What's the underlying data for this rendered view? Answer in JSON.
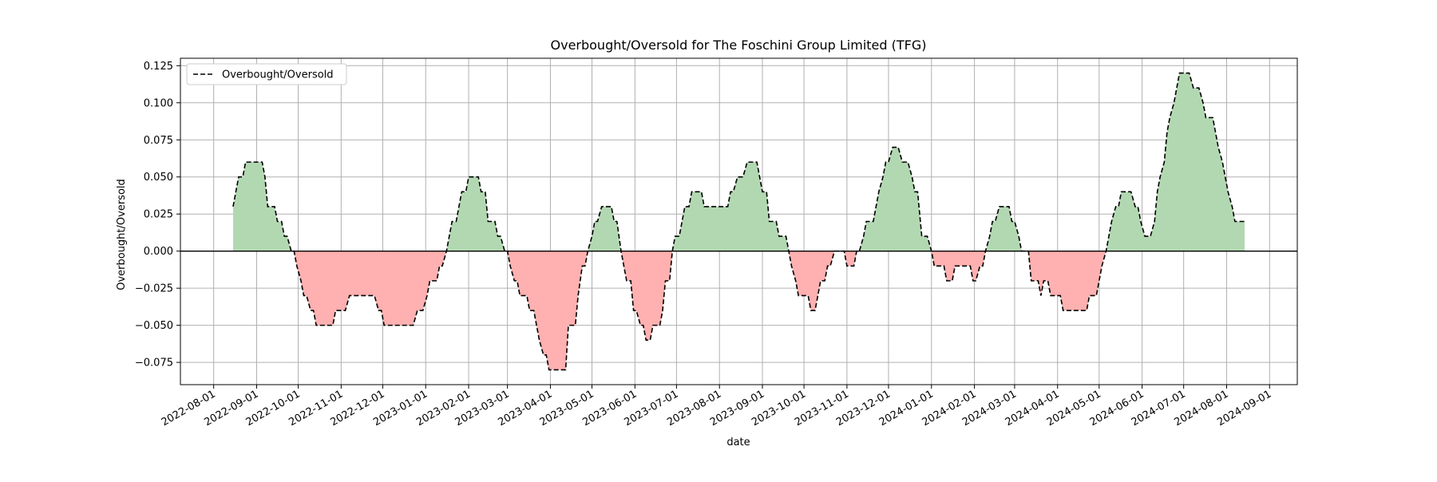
{
  "chart_data": {
    "type": "area",
    "title": "Overbought/Oversold for The Foschini Group Limited (TFG)",
    "xlabel": "date",
    "ylabel": "Overbought/Oversold",
    "legend": {
      "label": "Overbought/Oversold",
      "position": "top-left"
    },
    "xlim": [
      "2022-07-08",
      "2024-09-21"
    ],
    "ylim": [
      -0.09,
      0.13
    ],
    "grid": true,
    "x_ticks": [
      "2022-08-01",
      "2022-09-01",
      "2022-10-01",
      "2022-11-01",
      "2022-12-01",
      "2023-01-01",
      "2023-02-01",
      "2023-03-01",
      "2023-04-01",
      "2023-05-01",
      "2023-06-01",
      "2023-07-01",
      "2023-08-01",
      "2023-09-01",
      "2023-10-01",
      "2023-11-01",
      "2023-12-01",
      "2024-01-01",
      "2024-02-01",
      "2024-03-01",
      "2024-04-01",
      "2024-05-01",
      "2024-06-01",
      "2024-07-01",
      "2024-08-01",
      "2024-09-01"
    ],
    "y_ticks": [
      "0.125",
      "0.100",
      "0.075",
      "0.050",
      "0.025",
      "0.000",
      "−0.025",
      "−0.050",
      "−0.075"
    ],
    "y_tick_values": [
      0.125,
      0.1,
      0.075,
      0.05,
      0.025,
      0.0,
      -0.025,
      -0.05,
      -0.075
    ],
    "colors": {
      "positive_fill": "#b2d8b2",
      "negative_fill": "#ffb0b0",
      "line": "#000000",
      "zero_line": "#000000",
      "grid": "#b0b0b0"
    },
    "series": [
      {
        "name": "Overbought/Oversold",
        "points": [
          [
            "2022-08-15",
            0.03
          ],
          [
            "2022-08-17",
            0.04
          ],
          [
            "2022-08-19",
            0.05
          ],
          [
            "2022-08-22",
            0.05
          ],
          [
            "2022-08-24",
            0.06
          ],
          [
            "2022-09-05",
            0.06
          ],
          [
            "2022-09-07",
            0.05
          ],
          [
            "2022-09-09",
            0.03
          ],
          [
            "2022-09-14",
            0.03
          ],
          [
            "2022-09-16",
            0.02
          ],
          [
            "2022-09-19",
            0.02
          ],
          [
            "2022-09-21",
            0.01
          ],
          [
            "2022-09-23",
            0.01
          ],
          [
            "2022-09-26",
            0.0
          ],
          [
            "2022-09-28",
            0.0
          ],
          [
            "2022-09-30",
            -0.01
          ],
          [
            "2022-10-03",
            -0.02
          ],
          [
            "2022-10-05",
            -0.03
          ],
          [
            "2022-10-07",
            -0.03
          ],
          [
            "2022-10-10",
            -0.04
          ],
          [
            "2022-10-12",
            -0.04
          ],
          [
            "2022-10-14",
            -0.05
          ],
          [
            "2022-10-26",
            -0.05
          ],
          [
            "2022-10-28",
            -0.04
          ],
          [
            "2022-11-04",
            -0.04
          ],
          [
            "2022-11-07",
            -0.03
          ],
          [
            "2022-11-25",
            -0.03
          ],
          [
            "2022-11-28",
            -0.04
          ],
          [
            "2022-11-30",
            -0.04
          ],
          [
            "2022-12-02",
            -0.05
          ],
          [
            "2022-12-23",
            -0.05
          ],
          [
            "2022-12-26",
            -0.04
          ],
          [
            "2022-12-30",
            -0.04
          ],
          [
            "2023-01-02",
            -0.03
          ],
          [
            "2023-01-04",
            -0.02
          ],
          [
            "2023-01-09",
            -0.02
          ],
          [
            "2023-01-11",
            -0.01
          ],
          [
            "2023-01-13",
            -0.01
          ],
          [
            "2023-01-16",
            0.0
          ],
          [
            "2023-01-18",
            0.01
          ],
          [
            "2023-01-20",
            0.02
          ],
          [
            "2023-01-23",
            0.02
          ],
          [
            "2023-01-25",
            0.03
          ],
          [
            "2023-01-27",
            0.04
          ],
          [
            "2023-01-30",
            0.04
          ],
          [
            "2023-02-01",
            0.05
          ],
          [
            "2023-02-08",
            0.05
          ],
          [
            "2023-02-10",
            0.04
          ],
          [
            "2023-02-13",
            0.04
          ],
          [
            "2023-02-15",
            0.02
          ],
          [
            "2023-02-20",
            0.02
          ],
          [
            "2023-02-22",
            0.01
          ],
          [
            "2023-02-24",
            0.01
          ],
          [
            "2023-02-27",
            0.0
          ],
          [
            "2023-03-01",
            0.0
          ],
          [
            "2023-03-03",
            -0.01
          ],
          [
            "2023-03-06",
            -0.02
          ],
          [
            "2023-03-08",
            -0.02
          ],
          [
            "2023-03-10",
            -0.03
          ],
          [
            "2023-03-15",
            -0.03
          ],
          [
            "2023-03-17",
            -0.04
          ],
          [
            "2023-03-20",
            -0.04
          ],
          [
            "2023-03-22",
            -0.05
          ],
          [
            "2023-03-24",
            -0.06
          ],
          [
            "2023-03-27",
            -0.07
          ],
          [
            "2023-03-29",
            -0.07
          ],
          [
            "2023-03-31",
            -0.08
          ],
          [
            "2023-04-12",
            -0.08
          ],
          [
            "2023-04-14",
            -0.05
          ],
          [
            "2023-04-19",
            -0.05
          ],
          [
            "2023-04-21",
            -0.03
          ],
          [
            "2023-04-24",
            -0.01
          ],
          [
            "2023-04-26",
            -0.01
          ],
          [
            "2023-04-28",
            0.0
          ],
          [
            "2023-05-01",
            0.01
          ],
          [
            "2023-05-03",
            0.02
          ],
          [
            "2023-05-05",
            0.02
          ],
          [
            "2023-05-08",
            0.03
          ],
          [
            "2023-05-15",
            0.03
          ],
          [
            "2023-05-17",
            0.02
          ],
          [
            "2023-05-19",
            0.02
          ],
          [
            "2023-05-22",
            0.0
          ],
          [
            "2023-05-24",
            -0.01
          ],
          [
            "2023-05-26",
            -0.02
          ],
          [
            "2023-05-29",
            -0.02
          ],
          [
            "2023-05-31",
            -0.04
          ],
          [
            "2023-06-02",
            -0.04
          ],
          [
            "2023-06-05",
            -0.05
          ],
          [
            "2023-06-07",
            -0.05
          ],
          [
            "2023-06-09",
            -0.06
          ],
          [
            "2023-06-12",
            -0.06
          ],
          [
            "2023-06-14",
            -0.05
          ],
          [
            "2023-06-19",
            -0.05
          ],
          [
            "2023-06-21",
            -0.04
          ],
          [
            "2023-06-23",
            -0.02
          ],
          [
            "2023-06-26",
            -0.02
          ],
          [
            "2023-06-28",
            0.0
          ],
          [
            "2023-06-30",
            0.01
          ],
          [
            "2023-07-03",
            0.01
          ],
          [
            "2023-07-05",
            0.02
          ],
          [
            "2023-07-07",
            0.03
          ],
          [
            "2023-07-10",
            0.03
          ],
          [
            "2023-07-12",
            0.04
          ],
          [
            "2023-07-19",
            0.04
          ],
          [
            "2023-07-21",
            0.03
          ],
          [
            "2023-08-07",
            0.03
          ],
          [
            "2023-08-09",
            0.04
          ],
          [
            "2023-08-11",
            0.04
          ],
          [
            "2023-08-14",
            0.05
          ],
          [
            "2023-08-18",
            0.05
          ],
          [
            "2023-08-21",
            0.06
          ],
          [
            "2023-08-28",
            0.06
          ],
          [
            "2023-08-30",
            0.05
          ],
          [
            "2023-09-01",
            0.04
          ],
          [
            "2023-09-04",
            0.04
          ],
          [
            "2023-09-06",
            0.02
          ],
          [
            "2023-09-11",
            0.02
          ],
          [
            "2023-09-13",
            0.01
          ],
          [
            "2023-09-18",
            0.01
          ],
          [
            "2023-09-20",
            0.0
          ],
          [
            "2023-09-22",
            -0.01
          ],
          [
            "2023-09-25",
            -0.02
          ],
          [
            "2023-09-27",
            -0.03
          ],
          [
            "2023-10-04",
            -0.03
          ],
          [
            "2023-10-06",
            -0.04
          ],
          [
            "2023-10-09",
            -0.04
          ],
          [
            "2023-10-11",
            -0.03
          ],
          [
            "2023-10-13",
            -0.02
          ],
          [
            "2023-10-16",
            -0.02
          ],
          [
            "2023-10-18",
            -0.01
          ],
          [
            "2023-10-20",
            -0.01
          ],
          [
            "2023-10-23",
            0.0
          ],
          [
            "2023-10-30",
            0.0
          ],
          [
            "2023-11-01",
            -0.01
          ],
          [
            "2023-11-06",
            -0.01
          ],
          [
            "2023-11-08",
            0.0
          ],
          [
            "2023-11-10",
            0.0
          ],
          [
            "2023-11-13",
            0.01
          ],
          [
            "2023-11-15",
            0.02
          ],
          [
            "2023-11-20",
            0.02
          ],
          [
            "2023-11-22",
            0.03
          ],
          [
            "2023-11-24",
            0.04
          ],
          [
            "2023-11-27",
            0.05
          ],
          [
            "2023-11-29",
            0.06
          ],
          [
            "2023-12-01",
            0.06
          ],
          [
            "2023-12-04",
            0.07
          ],
          [
            "2023-12-08",
            0.07
          ],
          [
            "2023-12-11",
            0.06
          ],
          [
            "2023-12-15",
            0.06
          ],
          [
            "2023-12-18",
            0.05
          ],
          [
            "2023-12-20",
            0.04
          ],
          [
            "2023-12-22",
            0.04
          ],
          [
            "2023-12-25",
            0.01
          ],
          [
            "2023-12-29",
            0.01
          ],
          [
            "2024-01-01",
            0.0
          ],
          [
            "2024-01-03",
            -0.01
          ],
          [
            "2024-01-10",
            -0.01
          ],
          [
            "2024-01-12",
            -0.02
          ],
          [
            "2024-01-16",
            -0.02
          ],
          [
            "2024-01-18",
            -0.01
          ],
          [
            "2024-01-29",
            -0.01
          ],
          [
            "2024-01-31",
            -0.02
          ],
          [
            "2024-02-02",
            -0.02
          ],
          [
            "2024-02-05",
            -0.01
          ],
          [
            "2024-02-07",
            -0.01
          ],
          [
            "2024-02-09",
            0.0
          ],
          [
            "2024-02-12",
            0.01
          ],
          [
            "2024-02-14",
            0.02
          ],
          [
            "2024-02-16",
            0.02
          ],
          [
            "2024-02-19",
            0.03
          ],
          [
            "2024-02-26",
            0.03
          ],
          [
            "2024-02-28",
            0.02
          ],
          [
            "2024-03-01",
            0.02
          ],
          [
            "2024-03-04",
            0.01
          ],
          [
            "2024-03-06",
            0.0
          ],
          [
            "2024-03-11",
            0.0
          ],
          [
            "2024-03-13",
            -0.02
          ],
          [
            "2024-03-18",
            -0.02
          ],
          [
            "2024-03-20",
            -0.03
          ],
          [
            "2024-03-22",
            -0.02
          ],
          [
            "2024-03-25",
            -0.02
          ],
          [
            "2024-03-27",
            -0.03
          ],
          [
            "2024-04-03",
            -0.03
          ],
          [
            "2024-04-05",
            -0.04
          ],
          [
            "2024-04-22",
            -0.04
          ],
          [
            "2024-04-24",
            -0.03
          ],
          [
            "2024-04-29",
            -0.03
          ],
          [
            "2024-05-01",
            -0.02
          ],
          [
            "2024-05-03",
            -0.01
          ],
          [
            "2024-05-06",
            0.0
          ],
          [
            "2024-05-08",
            0.01
          ],
          [
            "2024-05-10",
            0.02
          ],
          [
            "2024-05-13",
            0.03
          ],
          [
            "2024-05-15",
            0.03
          ],
          [
            "2024-05-17",
            0.04
          ],
          [
            "2024-05-24",
            0.04
          ],
          [
            "2024-05-27",
            0.03
          ],
          [
            "2024-05-29",
            0.03
          ],
          [
            "2024-05-31",
            0.02
          ],
          [
            "2024-06-03",
            0.01
          ],
          [
            "2024-06-07",
            0.01
          ],
          [
            "2024-06-10",
            0.02
          ],
          [
            "2024-06-12",
            0.04
          ],
          [
            "2024-06-14",
            0.05
          ],
          [
            "2024-06-17",
            0.06
          ],
          [
            "2024-06-19",
            0.08
          ],
          [
            "2024-06-21",
            0.09
          ],
          [
            "2024-06-24",
            0.1
          ],
          [
            "2024-06-26",
            0.11
          ],
          [
            "2024-06-28",
            0.12
          ],
          [
            "2024-07-05",
            0.12
          ],
          [
            "2024-07-08",
            0.11
          ],
          [
            "2024-07-12",
            0.11
          ],
          [
            "2024-07-15",
            0.1
          ],
          [
            "2024-07-17",
            0.09
          ],
          [
            "2024-07-22",
            0.09
          ],
          [
            "2024-07-24",
            0.08
          ],
          [
            "2024-07-26",
            0.07
          ],
          [
            "2024-07-29",
            0.06
          ],
          [
            "2024-07-31",
            0.05
          ],
          [
            "2024-08-02",
            0.04
          ],
          [
            "2024-08-05",
            0.03
          ],
          [
            "2024-08-07",
            0.02
          ],
          [
            "2024-08-14",
            0.02
          ]
        ]
      }
    ]
  }
}
